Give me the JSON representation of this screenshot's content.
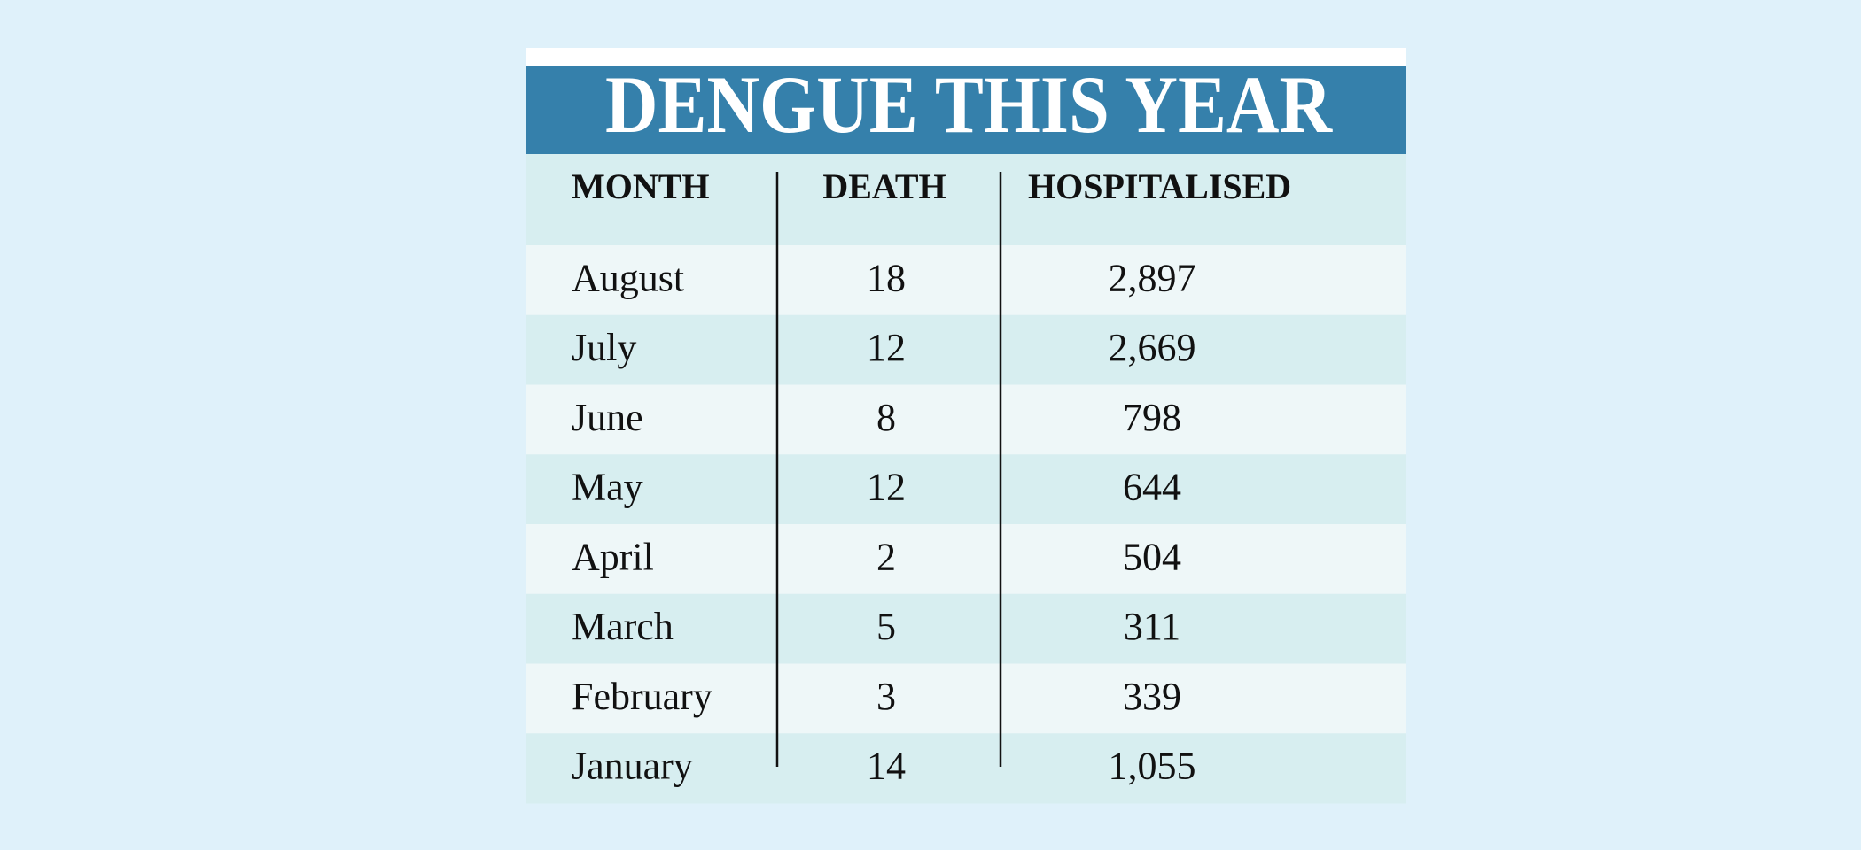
{
  "title": "DENGUE THIS YEAR",
  "table": {
    "header": [
      "MONTH",
      "DEATH",
      "HOSPITALISED"
    ],
    "rows": [
      [
        "August",
        "18",
        "2,897"
      ],
      [
        "July",
        "12",
        "2,669"
      ],
      [
        "June",
        "8",
        "798"
      ],
      [
        "May",
        "12",
        "644"
      ],
      [
        "April",
        "2",
        "504"
      ],
      [
        "March",
        "5",
        "311"
      ],
      [
        "February",
        "3",
        "339"
      ],
      [
        "January",
        "14",
        "1,055"
      ]
    ]
  }
}
